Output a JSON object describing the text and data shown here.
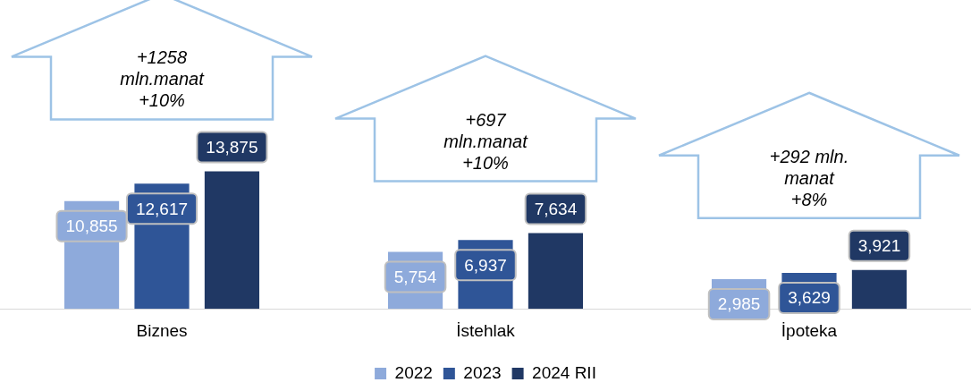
{
  "chart_data": {
    "type": "bar",
    "categories": [
      "Biznes",
      "İstehlak",
      "İpoteka"
    ],
    "series": [
      {
        "name": "2022",
        "color": "#8eaadb",
        "values": [
          10855,
          5754,
          2985
        ],
        "value_labels": [
          "10,855",
          "5,754",
          "2,985"
        ]
      },
      {
        "name": "2023",
        "color": "#2f5597",
        "values": [
          12617,
          6937,
          3629
        ],
        "value_labels": [
          "12,617",
          "6,937",
          "3,629"
        ]
      },
      {
        "name": "2024 RII",
        "color": "#203864",
        "values": [
          13875,
          7634,
          3921
        ],
        "value_labels": [
          "13,875",
          "7,634",
          "3,921"
        ]
      }
    ],
    "tick_labels": "x",
    "grid": false,
    "legend": "bottom",
    "annotations": [
      "+1258\nmln.manat\n+10%",
      "+697\nmln.manat\n+10%",
      "+292 mln.\nmanat\n+8%"
    ]
  }
}
